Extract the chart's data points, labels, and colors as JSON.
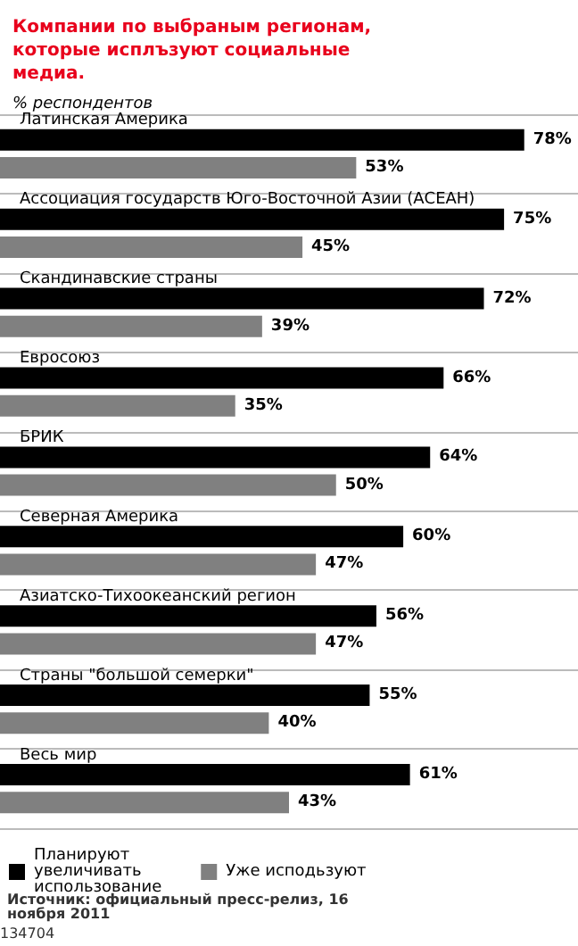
{
  "chart_data": {
    "type": "bar",
    "orientation": "horizontal",
    "title": "Компании по выбраным регионам, которые исплъзуют социальные медиа.",
    "subtitle": "% респондентов",
    "categories": [
      "Латинская Америка",
      "Ассоциация государств Юго-Восточной Азии (АСЕАН)",
      "Скандинавские страны",
      "Евросоюз",
      "БРИК",
      "Северная Америка",
      "Азиатско-Тихоокеанский регион",
      "Страны \"большой семерки\"",
      "Весь мир"
    ],
    "series": [
      {
        "name": "Планируют увеличивать использование",
        "color": "#000000",
        "values": [
          78,
          75,
          72,
          66,
          64,
          60,
          56,
          55,
          61
        ],
        "value_labels": [
          "78%",
          "75%",
          "72%",
          "66%",
          "64%",
          "60%",
          "56%",
          "55%",
          "61%"
        ]
      },
      {
        "name": "Уже исподьзуют",
        "color": "#808080",
        "values": [
          53,
          45,
          39,
          35,
          50,
          47,
          47,
          40,
          43
        ],
        "value_labels": [
          "53%",
          "45%",
          "39%",
          "35%",
          "50%",
          "47%",
          "47%",
          "40%",
          "43%"
        ]
      }
    ],
    "xlim": [
      0,
      86
    ],
    "tick_labels": "y",
    "grid": "y",
    "legend": "bottom left",
    "annotations": [
      "Источник: официальный пресс-релиз, 16 ноября 2011",
      "134704"
    ]
  }
}
